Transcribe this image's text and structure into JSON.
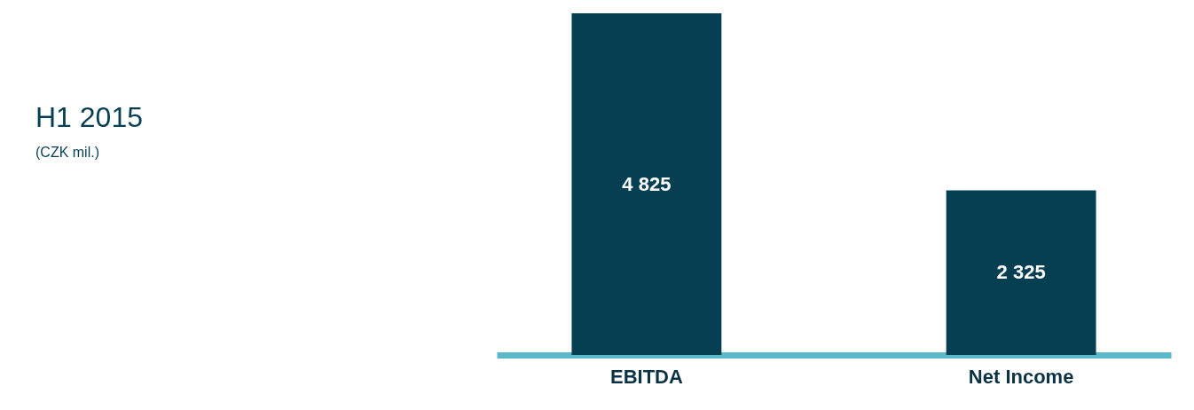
{
  "chart_data": {
    "type": "bar",
    "title": "H1 2015",
    "subtitle": "(CZK mil.)",
    "categories": [
      "EBITDA",
      "Net Income"
    ],
    "values": [
      4825,
      2325
    ],
    "color": "#063f51",
    "value_labels": [
      "4 825",
      "2 325"
    ],
    "grid": false
  }
}
